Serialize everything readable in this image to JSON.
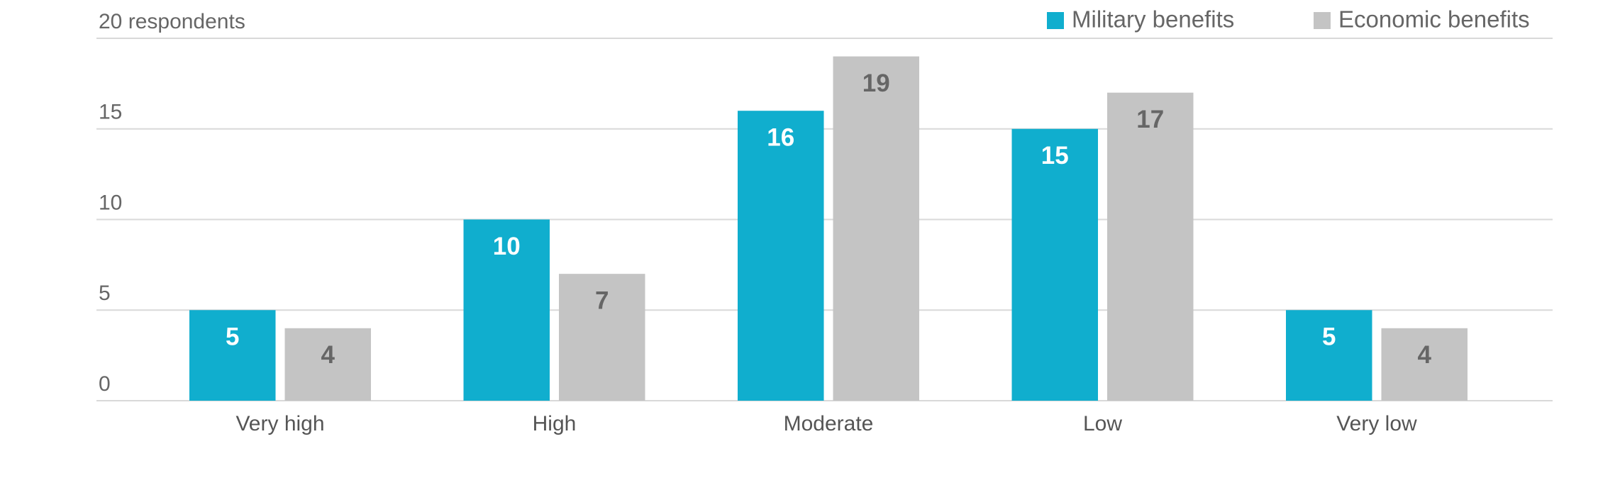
{
  "chart_data": {
    "type": "bar",
    "categories": [
      "Very high",
      "High",
      "Moderate",
      "Low",
      "Very low"
    ],
    "series": [
      {
        "name": "Military benefits",
        "color": "#10aece",
        "values": [
          5,
          10,
          16,
          15,
          5
        ]
      },
      {
        "name": "Economic benefits",
        "color": "#c4c4c4",
        "values": [
          4,
          7,
          19,
          17,
          4
        ]
      }
    ],
    "ylim": [
      0,
      20
    ],
    "yticks": [
      0,
      5,
      10,
      15,
      {
        "value": 20,
        "label": "20 respondents"
      }
    ],
    "grid": true,
    "legend": "top-right"
  }
}
